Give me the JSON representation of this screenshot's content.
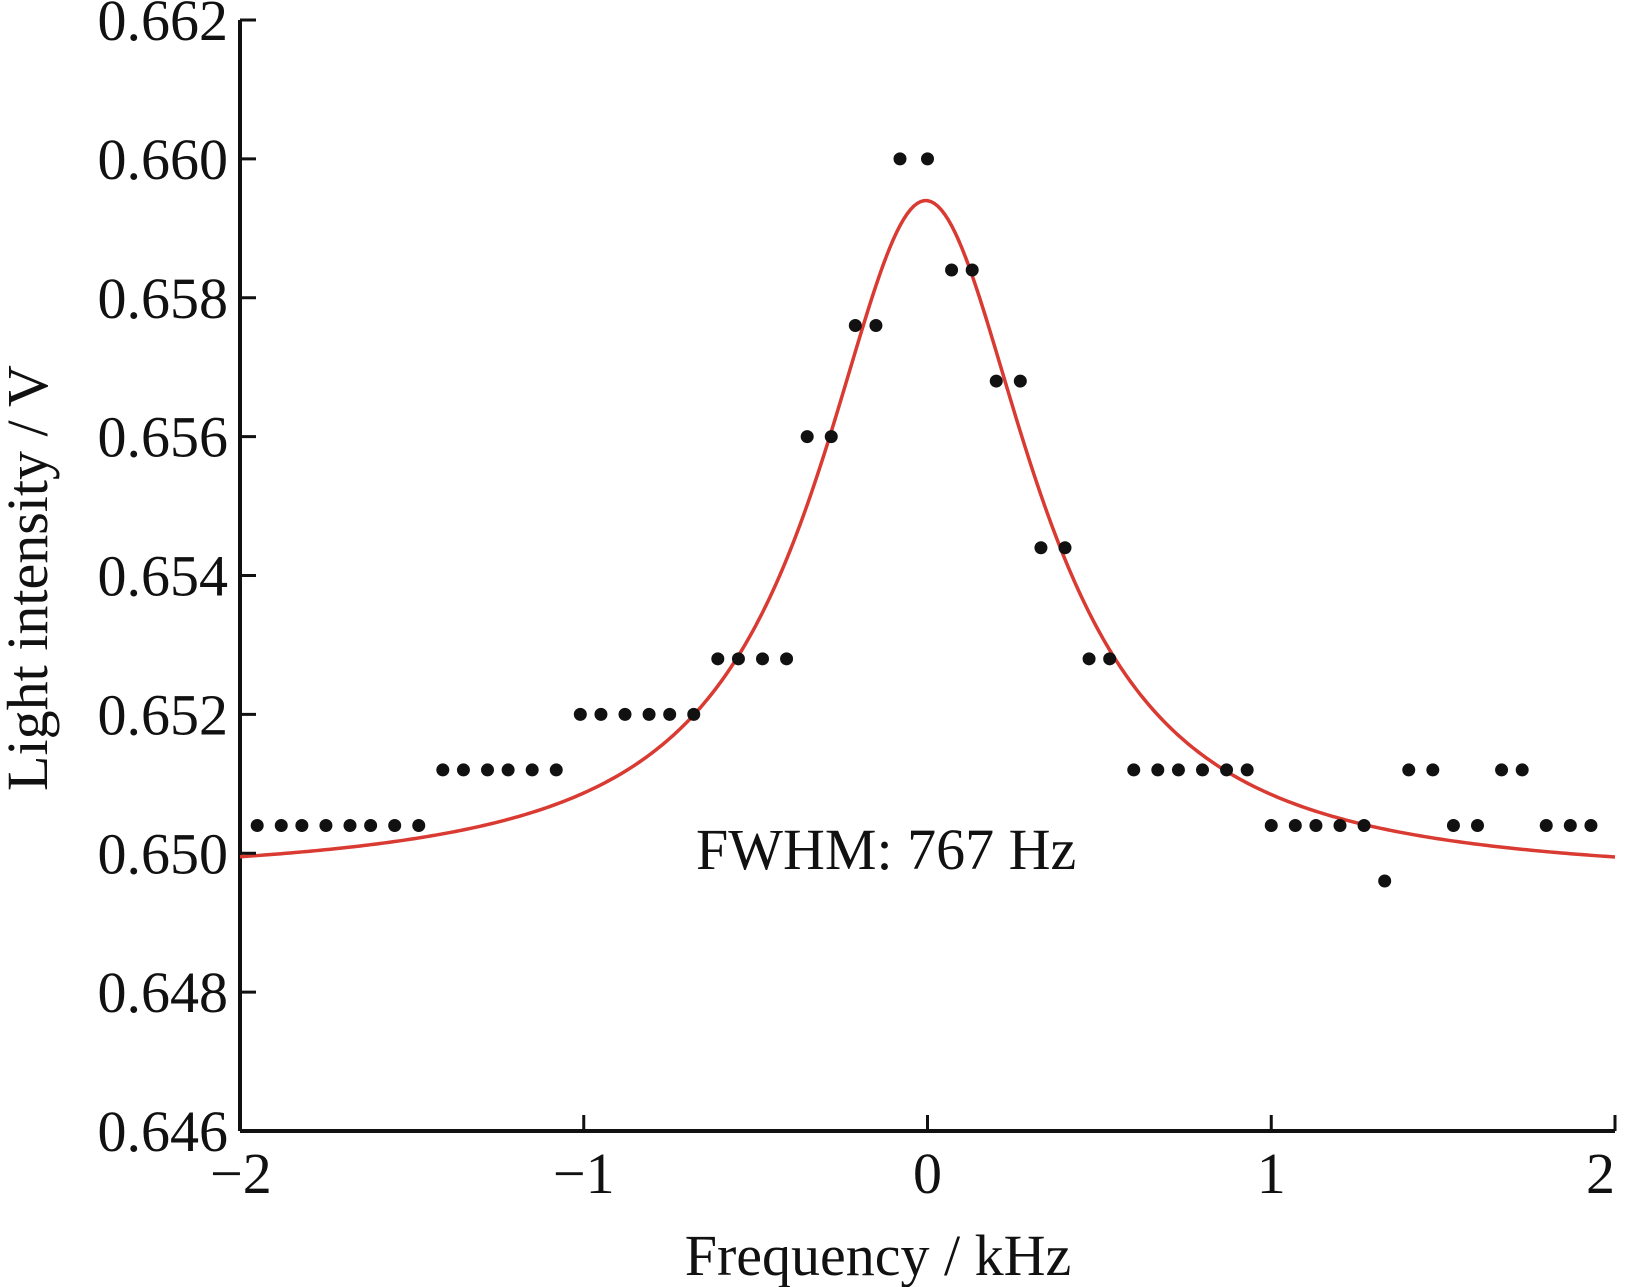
{
  "chart_data": {
    "type": "scatter",
    "title": "",
    "xlabel": "Frequency / kHz",
    "ylabel": "Light intensity / V",
    "xlim": [
      -2,
      2
    ],
    "ylim": [
      0.646,
      0.662
    ],
    "x_ticks": [
      -2,
      -1,
      0,
      1,
      2
    ],
    "x_tick_labels": [
      "−2",
      "−1",
      "0",
      "1",
      "2"
    ],
    "y_ticks": [
      0.646,
      0.648,
      0.65,
      0.652,
      0.654,
      0.656,
      0.658,
      0.66,
      0.662
    ],
    "y_tick_labels": [
      "0.646",
      "0.648",
      "0.650",
      "0.652",
      "0.654",
      "0.656",
      "0.658",
      "0.660",
      "0.662"
    ],
    "grid": false,
    "annotation": "FWHM: 767 Hz",
    "colors": {
      "points": "#111111",
      "fit": "#d93a32",
      "axis": "#111111"
    },
    "series": [
      {
        "type": "scatter",
        "x": [
          -1.95,
          -1.88,
          -1.82,
          -1.75,
          -1.68,
          -1.62,
          -1.55,
          -1.48,
          -1.41,
          -1.35,
          -1.28,
          -1.22,
          -1.15,
          -1.08,
          -1.01,
          -0.95,
          -0.88,
          -0.81,
          -0.75,
          -0.68,
          -0.61,
          -0.55,
          -0.48,
          -0.41,
          -0.35,
          -0.28,
          -0.21,
          -0.15,
          -0.08,
          0.0,
          0.07,
          0.13,
          0.2,
          0.27,
          0.33,
          0.4,
          0.47,
          0.53,
          0.6,
          0.67,
          0.73,
          0.8,
          0.87,
          0.93,
          1.0,
          1.07,
          1.13,
          1.2,
          1.27,
          1.33,
          1.4,
          1.47,
          1.53,
          1.6,
          1.67,
          1.73,
          1.8,
          1.87,
          1.93
        ],
        "y": [
          0.6504,
          0.6504,
          0.6504,
          0.6504,
          0.6504,
          0.6504,
          0.6504,
          0.6504,
          0.6512,
          0.6512,
          0.6512,
          0.6512,
          0.6512,
          0.6512,
          0.652,
          0.652,
          0.652,
          0.652,
          0.652,
          0.652,
          0.6528,
          0.6528,
          0.6528,
          0.6528,
          0.656,
          0.656,
          0.6576,
          0.6576,
          0.66,
          0.66,
          0.6584,
          0.6584,
          0.6568,
          0.6568,
          0.6544,
          0.6544,
          0.6528,
          0.6528,
          0.6512,
          0.6512,
          0.6512,
          0.6512,
          0.6512,
          0.6512,
          0.6504,
          0.6504,
          0.6504,
          0.6504,
          0.6504,
          0.6496,
          0.6512,
          0.6512,
          0.6504,
          0.6504,
          0.6512,
          0.6512,
          0.6504,
          0.6504,
          0.6504
        ]
      },
      {
        "type": "line",
        "model": "lorentzian",
        "center": -0.005,
        "fwhm": 0.767,
        "baseline": 0.6496,
        "peak": 0.6594,
        "x_range": [
          -2,
          2
        ]
      }
    ]
  }
}
